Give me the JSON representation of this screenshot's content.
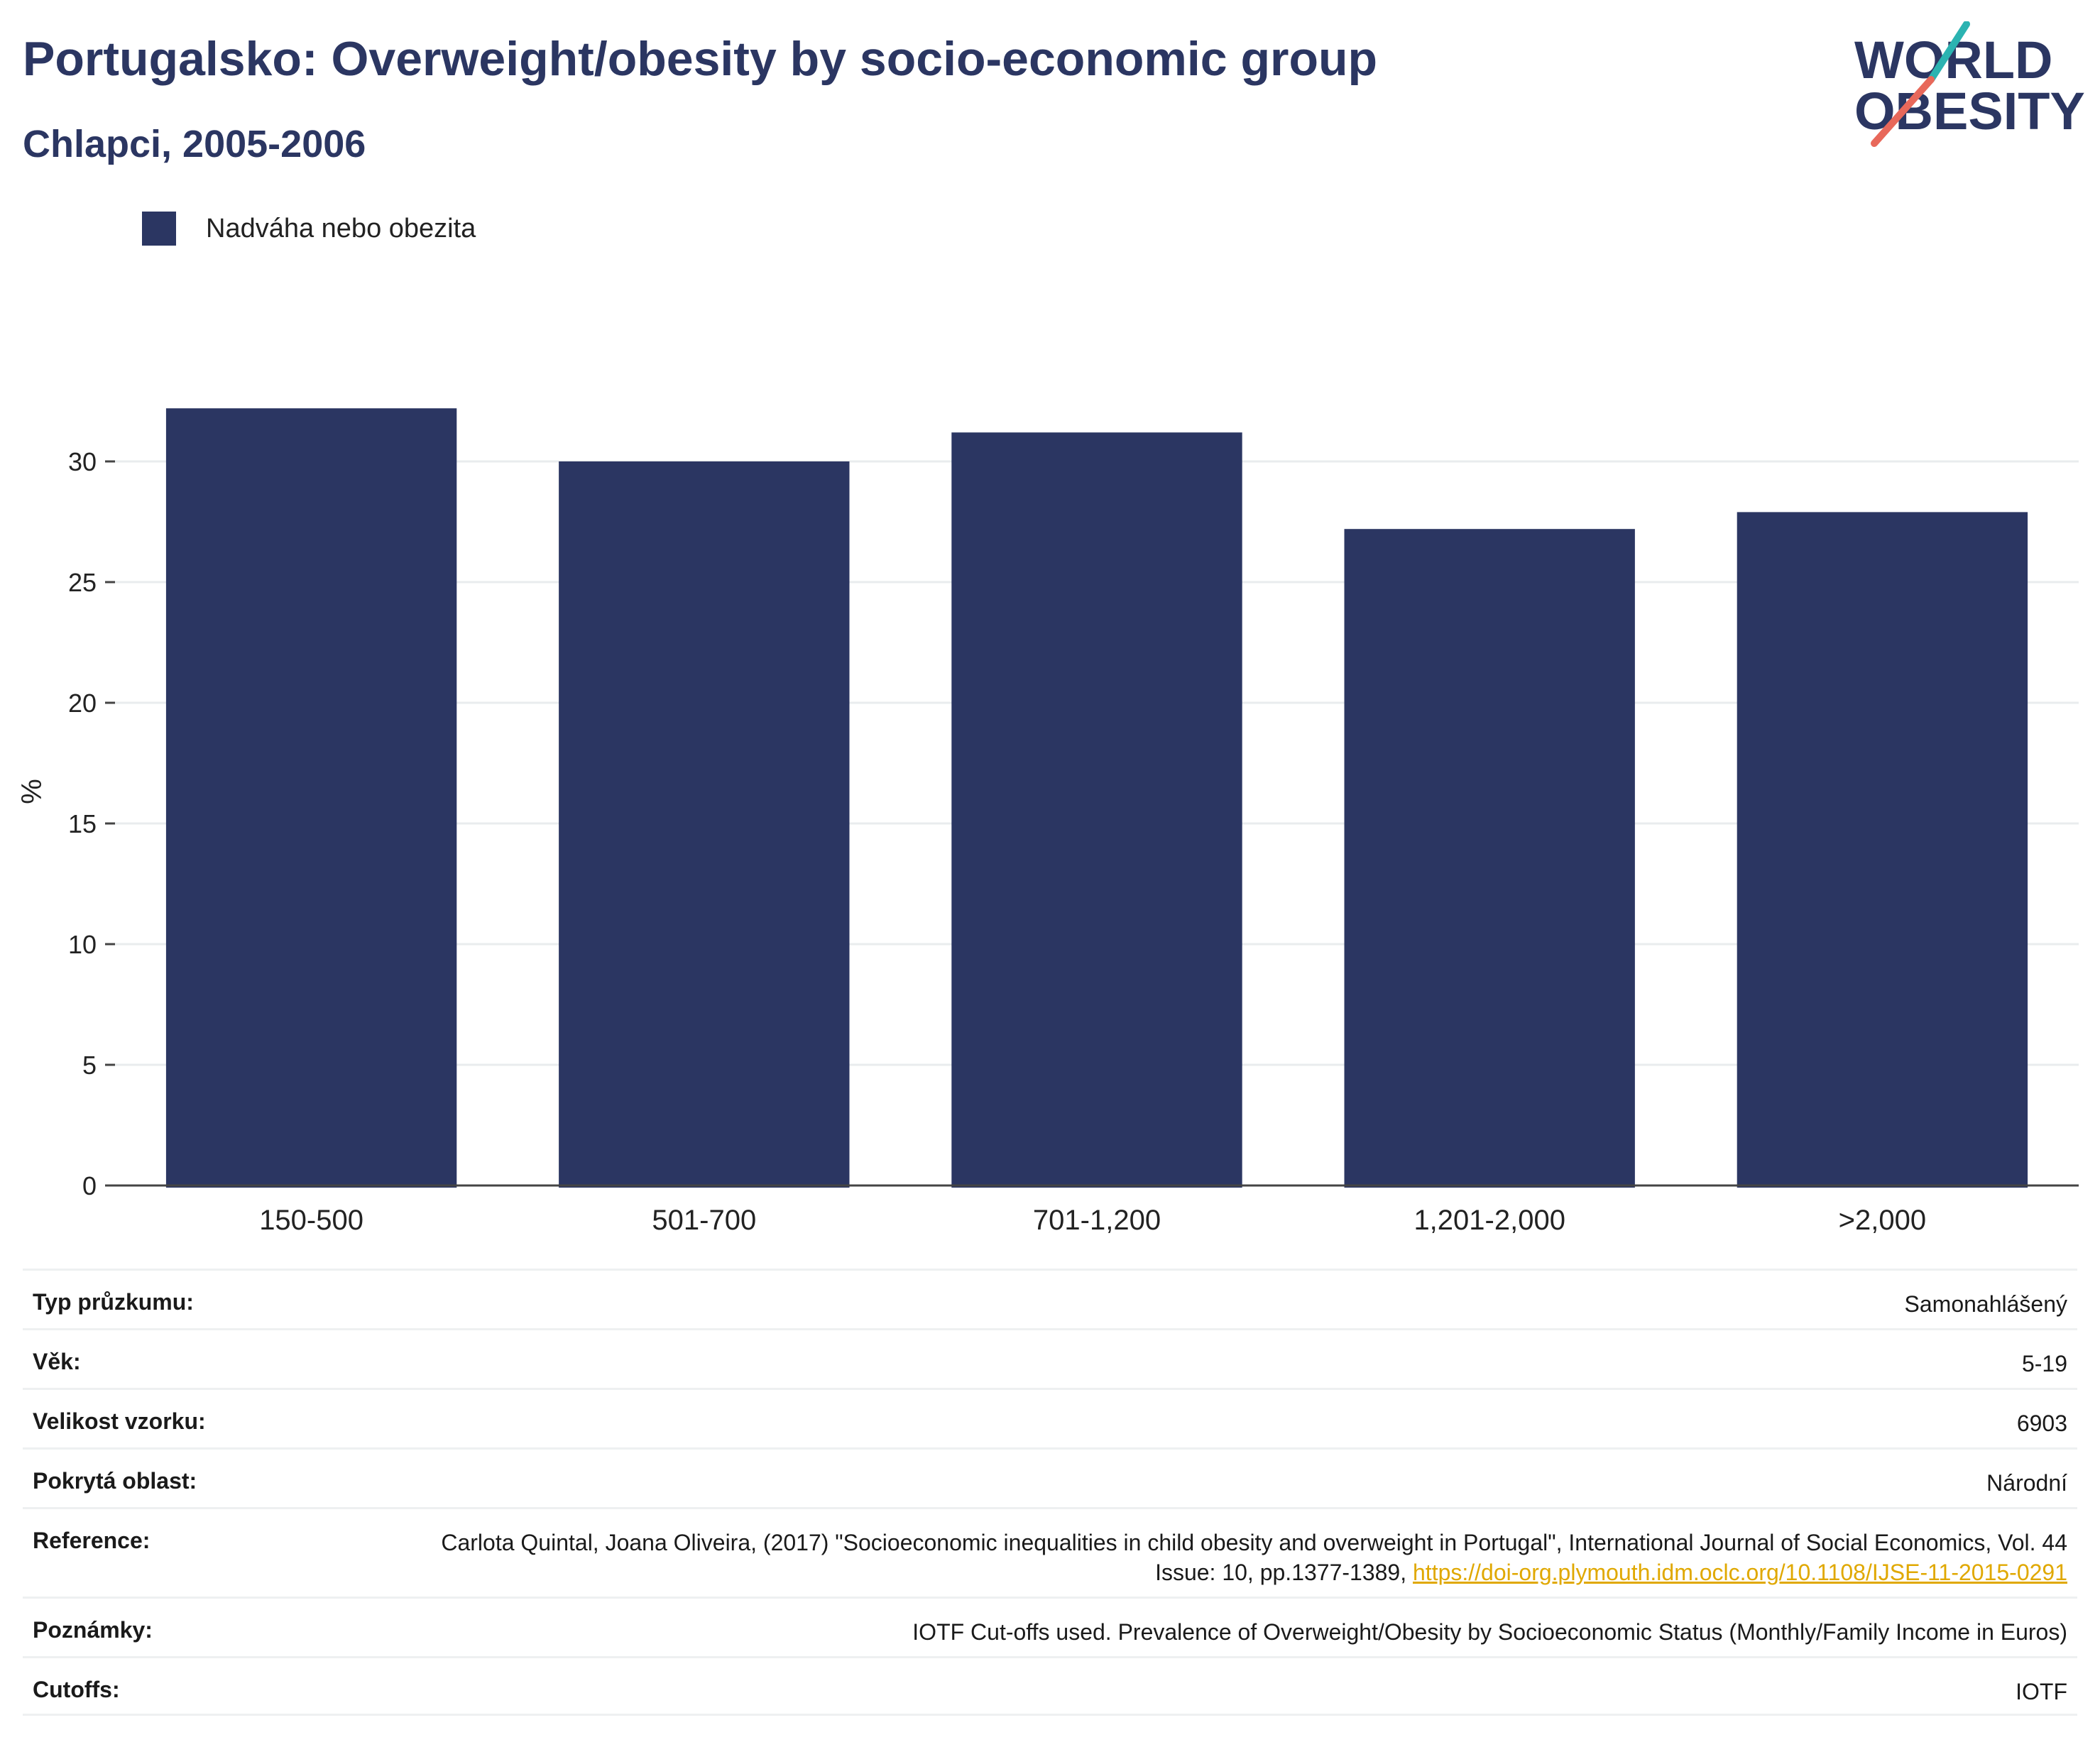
{
  "header": {
    "title": "Portugalsko: Overweight/obesity by socio-economic group",
    "subtitle": "Chlapci, 2005-2006"
  },
  "logo": {
    "line1": "WORLD",
    "line2": "OBESITY",
    "slash_color_top": "#2bb3b1",
    "slash_color_bottom": "#e8685a"
  },
  "legend": {
    "label": "Nadváha nebo obezita"
  },
  "colors": {
    "bar": "#2b3662",
    "title": "#2b3662",
    "link": "#e0a800"
  },
  "chart_data": {
    "type": "bar",
    "categories": [
      "150-500",
      "501-700",
      "701-1,200",
      "1,201-2,000",
      ">2,000"
    ],
    "series": [
      {
        "name": "Nadváha nebo obezita",
        "values": [
          32.2,
          30.0,
          31.2,
          27.2,
          27.9
        ]
      }
    ],
    "ylabel": "%",
    "ylim": [
      0,
      35
    ],
    "yticks": [
      0,
      5,
      10,
      15,
      20,
      25,
      30
    ],
    "grid": true,
    "legend_position": "top-left"
  },
  "info": {
    "survey_type_label": "Typ průzkumu:",
    "survey_type_value": "Samonahlášený",
    "age_label": "Věk:",
    "age_value": "5-19",
    "sample_label": "Velikost vzorku:",
    "sample_value": "6903",
    "area_label": "Pokrytá oblast:",
    "area_value": "Národní",
    "reference_label": "Reference:",
    "reference_text": "Carlota Quintal, Joana Oliveira, (2017) \"Socioeconomic inequalities in child obesity and overweight in Portugal\", International Journal of Social Economics, Vol. 44 Issue: 10, pp.1377-1389, ",
    "reference_link": "https://doi-org.plymouth.idm.oclc.org/10.1108/IJSE-11-2015-0291",
    "notes_label": "Poznámky:",
    "notes_value": "IOTF Cut-offs used. Prevalence of Overweight/Obesity by Socioeconomic Status (Monthly/Family Income in Euros)",
    "cutoffs_label": "Cutoffs:",
    "cutoffs_value": "IOTF"
  }
}
